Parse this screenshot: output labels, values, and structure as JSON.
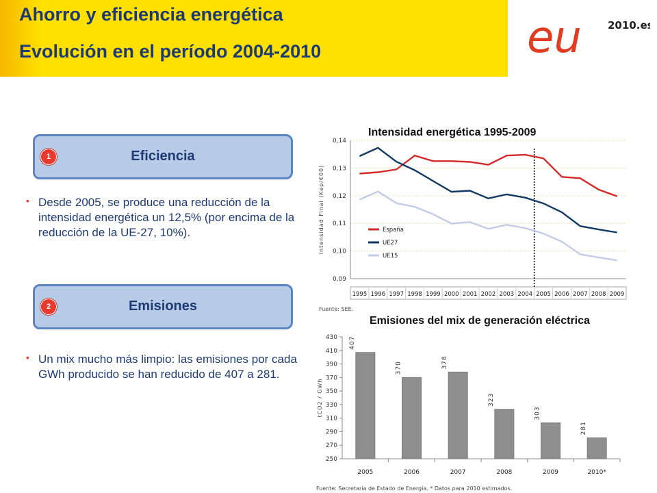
{
  "header": {
    "title_line1": "Ahorro y eficiencia energética",
    "title_line2": "Evolución en el período 2004-2010",
    "logo_text": "eu",
    "logo_suffix": "2010.es"
  },
  "sections": [
    {
      "badge": "1",
      "label": "Eficiencia",
      "bullet": "Desde 2005, se produce una reducción de la intensidad energética un 12,5% (por encima de la reducción de la UE-27, 10%)."
    },
    {
      "badge": "2",
      "label": "Emisiones",
      "bullet": "Un mix mucho más limpio: las emisiones por cada GWh producido se han reducido de 407 a 281."
    }
  ],
  "colors": {
    "header_yellow": "#ffe000",
    "title_blue": "#1e3a73",
    "section_fill": "#b7cbe6",
    "section_border": "#5b84c3",
    "badge_red": "#e8392e",
    "espana": "#d42a2a",
    "ue27": "#123a63",
    "ue15": "#c4cbe8",
    "bar": "#8e8e8e"
  },
  "chart_data": [
    {
      "type": "line",
      "title": "Intensidad energética 1995-2009",
      "ylabel": "Intensidad Final (Kep/€00)",
      "source": "Fuente: SEE.",
      "x": [
        "1995",
        "1996",
        "1997",
        "1998",
        "1999",
        "2000",
        "2001",
        "2002",
        "2003",
        "2004",
        "2005",
        "2006",
        "2007",
        "2008",
        "2009"
      ],
      "yticks": [
        "0,14",
        "0,13",
        "0,12",
        "0,11",
        "0,10",
        "0,09"
      ],
      "ylim": [
        0.09,
        0.14
      ],
      "grid": true,
      "marker_year": "2004",
      "legend_position": "left-bottom",
      "series": [
        {
          "name": "España",
          "values": [
            0.128,
            0.1285,
            0.1295,
            0.1345,
            0.1325,
            0.1325,
            0.1322,
            0.1312,
            0.1345,
            0.1348,
            0.1335,
            0.1268,
            0.1263,
            0.1222,
            0.1198
          ]
        },
        {
          "name": "UE27",
          "values": [
            0.1343,
            0.1373,
            0.1323,
            0.1292,
            0.1253,
            0.1214,
            0.1218,
            0.119,
            0.1205,
            0.1193,
            0.1172,
            0.114,
            0.109,
            0.1078,
            0.1067
          ]
        },
        {
          "name": "UE15",
          "values": [
            0.1186,
            0.1215,
            0.1173,
            0.116,
            0.1133,
            0.1099,
            0.1105,
            0.108,
            0.1095,
            0.1083,
            0.1063,
            0.1034,
            0.0988,
            0.0977,
            0.0966
          ]
        }
      ]
    },
    {
      "type": "bar",
      "title": "Emisiones del mix de generación eléctrica",
      "ylabel": "tCO2 / GWh",
      "source": "Fuente: Secretaría de Estado de Energía. * Datos para 2010 estimados.",
      "categories": [
        "2005",
        "2006",
        "2007",
        "2008",
        "2009",
        "2010*"
      ],
      "values": [
        407,
        370,
        378,
        323,
        303,
        281
      ],
      "yticks": [
        "430",
        "410",
        "390",
        "370",
        "350",
        "330",
        "310",
        "290",
        "270",
        "250"
      ],
      "ylim": [
        250,
        430
      ],
      "grid": false
    }
  ]
}
